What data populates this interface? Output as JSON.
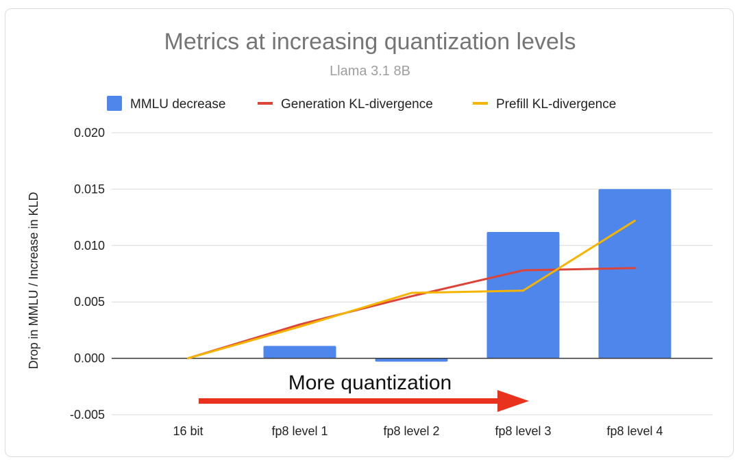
{
  "chart_data": {
    "type": "bar",
    "title": "Metrics at increasing quantization levels",
    "subtitle": "Llama 3.1 8B",
    "xlabel": "",
    "ylabel": "Drop in MMLU  / Increase in KLD",
    "categories": [
      "16 bit",
      "fp8 level 1",
      "fp8 level 2",
      "fp8 level 3",
      "fp8 level 4"
    ],
    "ylim": [
      -0.005,
      0.02
    ],
    "yticks": [
      -0.005,
      0.0,
      0.005,
      0.01,
      0.015,
      0.02
    ],
    "ytick_labels": [
      "-0.005",
      "0.000",
      "0.005",
      "0.010",
      "0.015",
      "0.020"
    ],
    "grid": true,
    "legend_position": "top",
    "series": [
      {
        "name": "MMLU decrease",
        "type": "bar",
        "color": "#4f86ec",
        "values": [
          0.0,
          0.0011,
          -0.0003,
          0.0112,
          0.015
        ]
      },
      {
        "name": "Generation KL-divergence",
        "type": "line",
        "color": "#db4437",
        "values": [
          0.0,
          0.003,
          0.0055,
          0.0078,
          0.008
        ]
      },
      {
        "name": "Prefill KL-divergence",
        "type": "line",
        "color": "#f4b400",
        "values": [
          0.0,
          0.0028,
          0.0058,
          0.006,
          0.0122
        ]
      }
    ],
    "annotation": {
      "text": "More quantization",
      "arrow_color": "#e8321e"
    }
  }
}
